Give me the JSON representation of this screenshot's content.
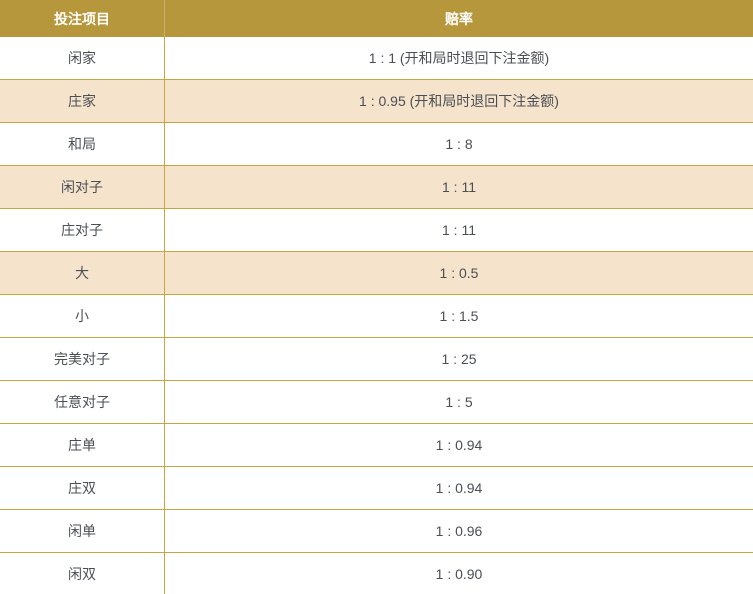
{
  "colors": {
    "header_bg": "#b6973c",
    "header_text": "#ffffff",
    "stripe_bg": "#f5e3cb",
    "row_bg": "#ffffff",
    "border": "#c5a63f",
    "text": "#4a4f55"
  },
  "table": {
    "headers": [
      {
        "label": "投注项目"
      },
      {
        "label": "赔率"
      }
    ],
    "rows": [
      {
        "item": "闲家",
        "odds": "1 : 1 (开和局时退回下注金额)",
        "striped": false
      },
      {
        "item": "庄家",
        "odds": "1 : 0.95 (开和局时退回下注金额)",
        "striped": true
      },
      {
        "item": "和局",
        "odds": "1 : 8",
        "striped": false
      },
      {
        "item": "闲对子",
        "odds": "1 : 11",
        "striped": true
      },
      {
        "item": "庄对子",
        "odds": "1 : 11",
        "striped": false
      },
      {
        "item": "大",
        "odds": "1 : 0.5",
        "striped": true
      },
      {
        "item": "小",
        "odds": "1 : 1.5",
        "striped": false
      },
      {
        "item": "完美对子",
        "odds": "1 : 25",
        "striped": false
      },
      {
        "item": "任意对子",
        "odds": "1 : 5",
        "striped": false
      },
      {
        "item": "庄单",
        "odds": "1 : 0.94",
        "striped": false
      },
      {
        "item": "庄双",
        "odds": "1 : 0.94",
        "striped": false
      },
      {
        "item": "闲单",
        "odds": "1 : 0.96",
        "striped": false
      },
      {
        "item": "闲双",
        "odds": "1 : 0.90",
        "striped": false
      }
    ]
  }
}
